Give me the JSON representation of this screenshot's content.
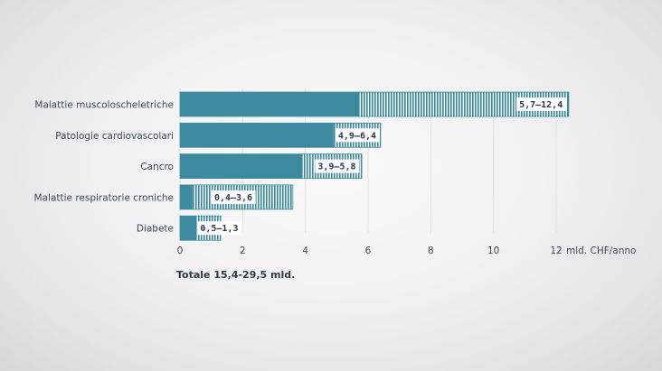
{
  "chart_data": {
    "type": "bar",
    "orientation": "horizontal",
    "categories": [
      "Malattie muscoloscheletriche",
      "Patologie cardiovascolari",
      "Cancro",
      "Malattie respiratorie croniche",
      "Diabete"
    ],
    "series": [
      {
        "name": "",
        "values": [
          5.7,
          4.9,
          3.9,
          0.4,
          0.5
        ]
      },
      {
        "name": "",
        "values": [
          12.4,
          6.4,
          5.8,
          3.6,
          1.3
        ]
      }
    ],
    "range_labels": [
      "5,7–12,4",
      "4,9–6,4",
      "3,9–5,8",
      "0,4–3,6",
      "0,5–1,3"
    ],
    "x_ticks": [
      0,
      2,
      4,
      6,
      8,
      10,
      12
    ],
    "xlim": [
      0,
      14.2
    ],
    "xlabel": "mld. CHF/anno",
    "grid": true,
    "colors": {
      "solid": "#3d8aa0",
      "hatch": "#3d8aa0",
      "grid": "#e2e2e2"
    }
  },
  "total_text": "Totale 15,4-29,5 mld."
}
